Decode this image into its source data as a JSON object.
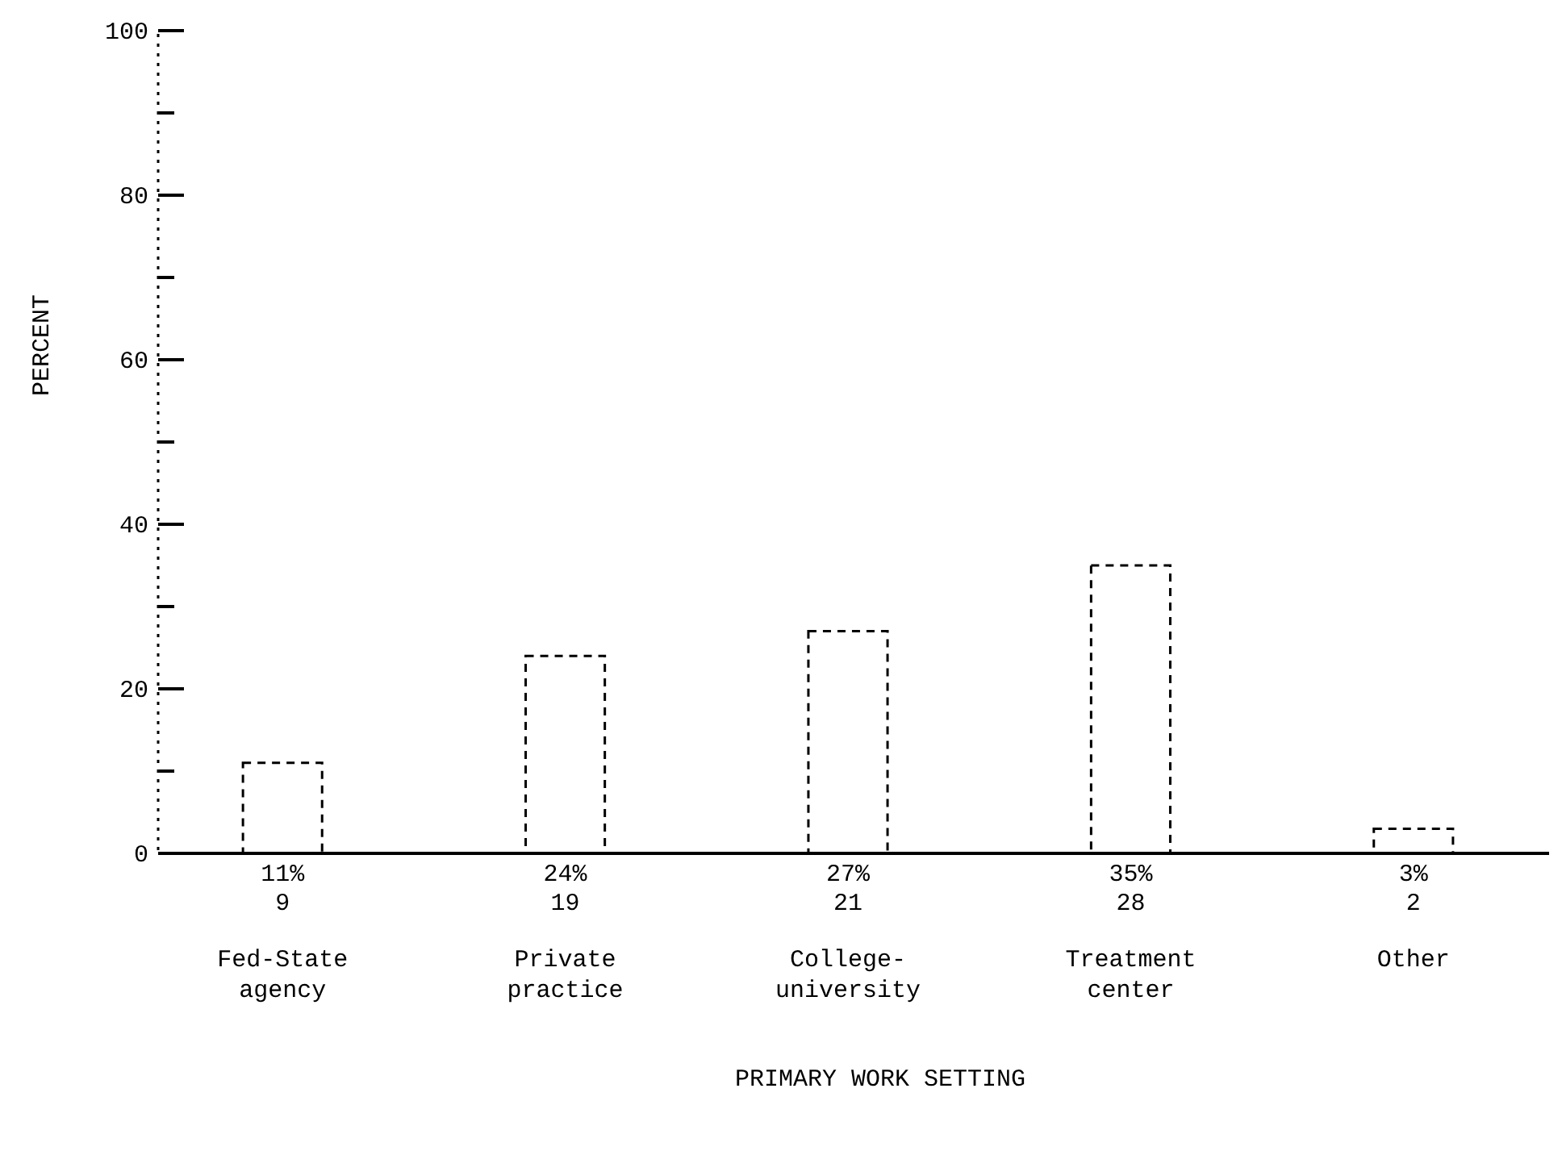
{
  "chart_data": {
    "type": "bar",
    "xlabel": "PRIMARY WORK SETTING",
    "ylabel": "PERCENT",
    "categories": [
      "Fed-State\nagency",
      "Private\npractice",
      "College-\nuniversity",
      "Treatment\ncenter",
      "Other"
    ],
    "values": [
      11,
      24,
      27,
      35,
      3
    ],
    "value_labels": [
      "11%\n9",
      "24%\n19",
      "27%\n21",
      "35%\n28",
      "3%\n2"
    ],
    "color": "#000000",
    "line_style": "dashed",
    "ylim": [
      0,
      100
    ],
    "yticks": [
      0,
      {
        "value": 10,
        "label": null
      },
      20,
      {
        "value": 30,
        "label": null
      },
      40,
      {
        "value": 50,
        "label": null
      },
      60,
      {
        "value": 70,
        "label": null
      },
      80,
      {
        "value": 90,
        "label": null
      },
      100
    ],
    "grid": false
  }
}
